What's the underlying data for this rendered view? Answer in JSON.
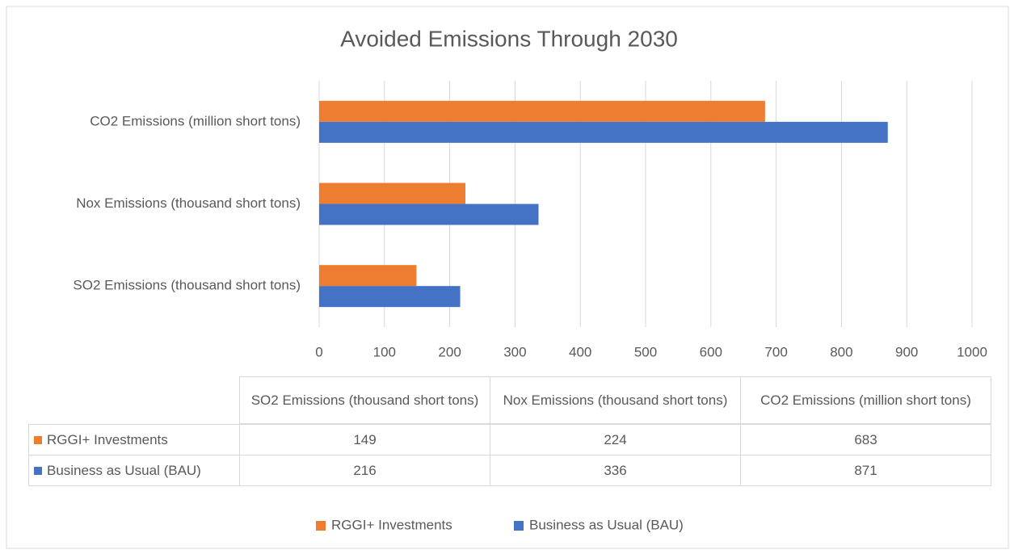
{
  "chart_data": {
    "type": "bar",
    "orientation": "horizontal",
    "title": "Avoided Emissions Through 2030",
    "categories": [
      "SO2 Emissions (thousand short tons)",
      "Nox Emissions (thousand short tons)",
      "CO2 Emissions (million short tons)"
    ],
    "series": [
      {
        "name": "RGGI+ Investments",
        "color": "#ed7d31",
        "values": [
          149,
          224,
          683
        ]
      },
      {
        "name": "Business as Usual (BAU)",
        "color": "#4472c4",
        "values": [
          216,
          336,
          871
        ]
      }
    ],
    "xlim": [
      0,
      1000
    ],
    "xticks": [
      0,
      100,
      200,
      300,
      400,
      500,
      600,
      700,
      800,
      900,
      1000
    ],
    "grid": true,
    "legend": "bottom",
    "data_table": true
  }
}
